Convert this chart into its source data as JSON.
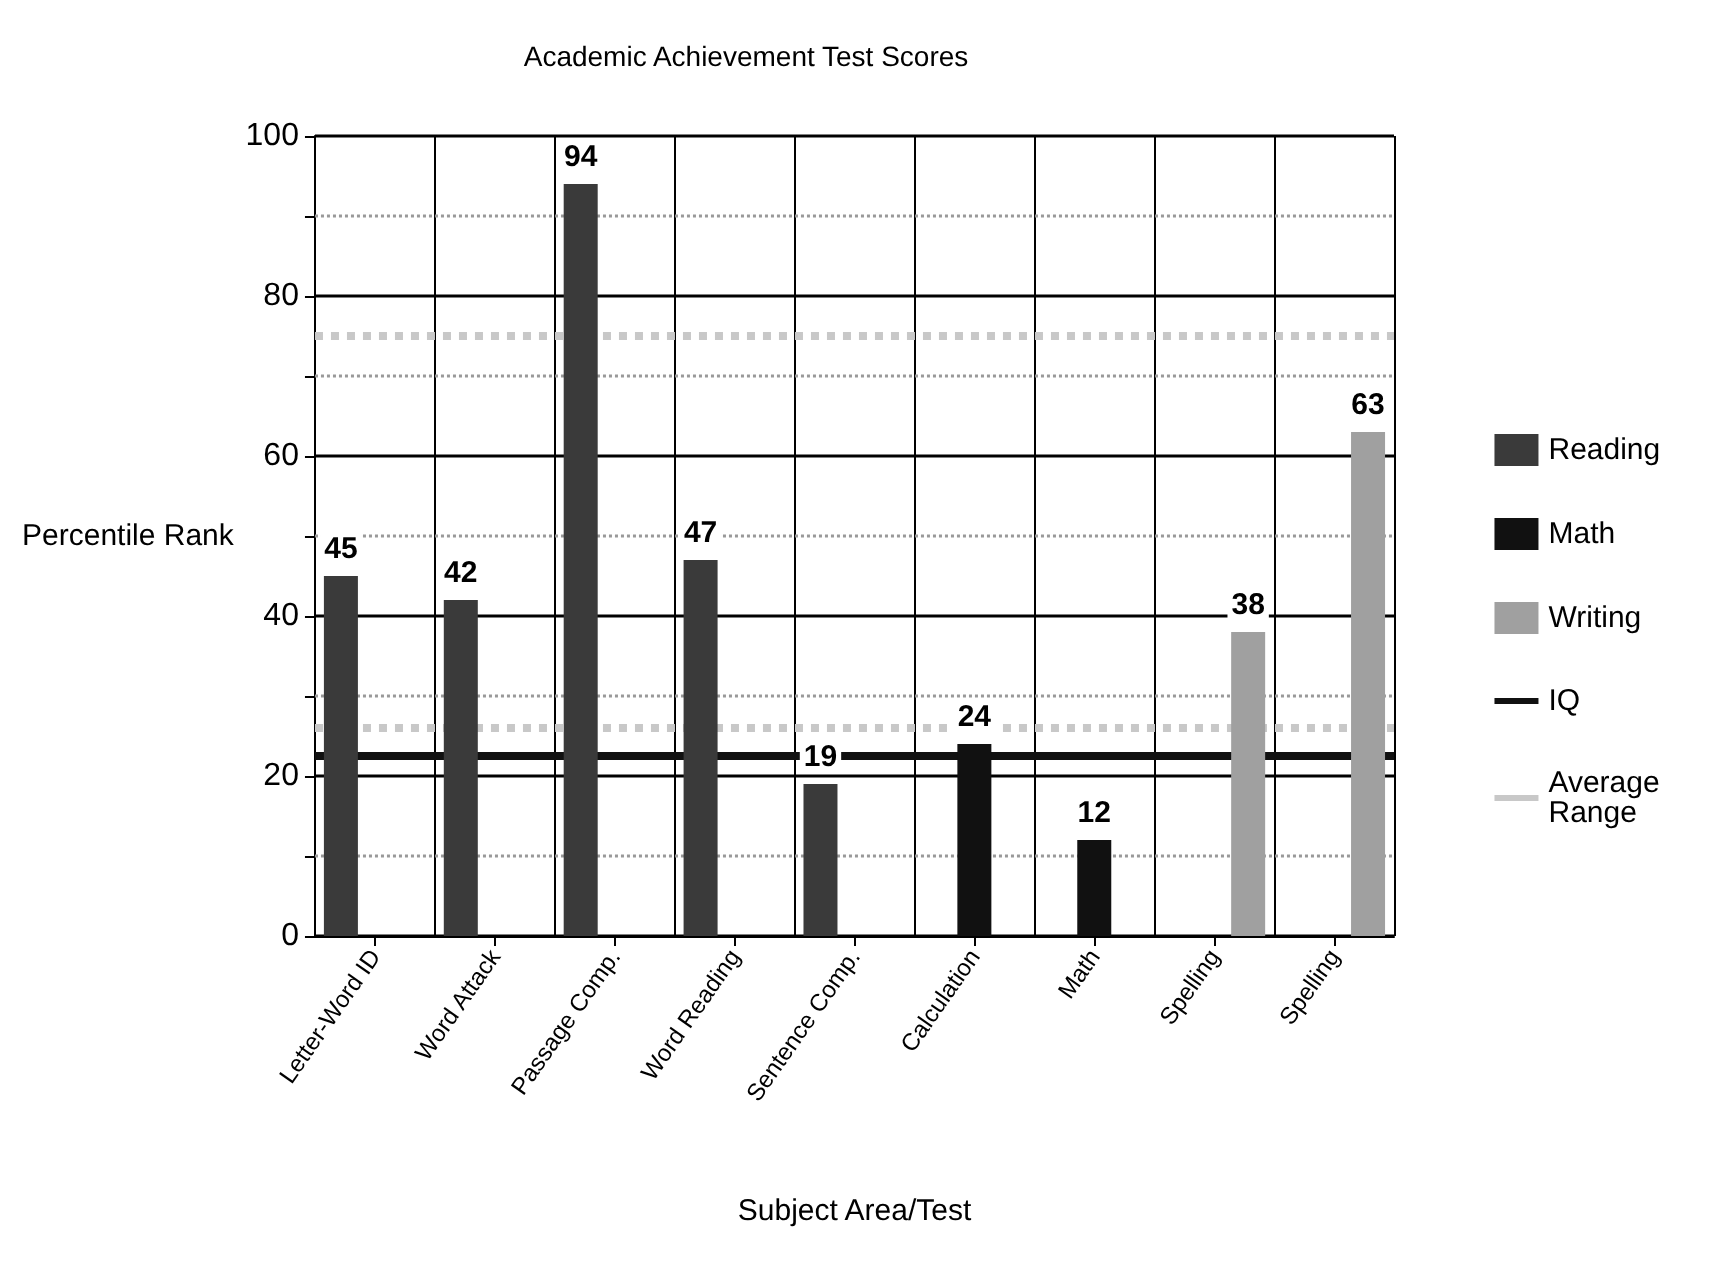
{
  "chart_data": {
    "type": "bar",
    "title": "Academic Achievement Test Scores",
    "xlabel": "Subject Area/Test",
    "ylabel": "Percentile Rank",
    "categories": [
      "Letter-Word ID",
      "Word Attack",
      "Passage Comp.",
      "Word Reading",
      "Sentence Comp.",
      "Calculation",
      "Math",
      "Spelling",
      "Spelling"
    ],
    "series": [
      {
        "name": "Reading",
        "color": "#3a3a3a",
        "values": [
          45,
          42,
          94,
          47,
          19,
          null,
          null,
          null,
          null
        ]
      },
      {
        "name": "Math",
        "color": "#111111",
        "values": [
          null,
          null,
          null,
          null,
          null,
          24,
          12,
          null,
          null
        ]
      },
      {
        "name": "Writing",
        "color": "#a0a0a0",
        "values": [
          null,
          null,
          null,
          null,
          null,
          null,
          null,
          38,
          63
        ]
      }
    ],
    "ylim": [
      0,
      100
    ],
    "yticks": [
      0,
      {
        "value": 10,
        "label": null
      },
      20,
      {
        "value": 30,
        "label": null
      },
      40,
      {
        "value": 50,
        "label": null
      },
      60,
      {
        "value": 70,
        "label": null
      },
      80,
      {
        "value": 90,
        "label": null
      },
      100
    ],
    "ref_lines": [
      {
        "axis": "y",
        "value": 22.5,
        "label": "IQ",
        "color": "#111111",
        "line_style": "solid"
      },
      {
        "axis": "y",
        "value": 26,
        "label": "Average Range",
        "color": "#c8c8c8",
        "line_style": "dotted"
      },
      {
        "axis": "y",
        "value": 75,
        "color": "#c8c8c8",
        "line_style": "dotted"
      }
    ],
    "data_labels": true,
    "grid": true,
    "legend": "right"
  }
}
